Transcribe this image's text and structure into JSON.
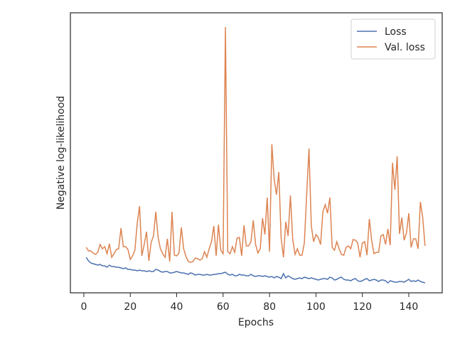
{
  "chart_data": {
    "type": "line",
    "xlabel": "Epochs",
    "ylabel": "Negative log-likelihood",
    "x": [
      1,
      2,
      3,
      4,
      5,
      6,
      7,
      8,
      9,
      10,
      11,
      12,
      13,
      14,
      15,
      16,
      17,
      18,
      19,
      20,
      21,
      22,
      23,
      24,
      25,
      26,
      27,
      28,
      29,
      30,
      31,
      32,
      33,
      34,
      35,
      36,
      37,
      38,
      39,
      40,
      41,
      42,
      43,
      44,
      45,
      46,
      47,
      48,
      49,
      50,
      51,
      52,
      53,
      54,
      55,
      56,
      57,
      58,
      59,
      60,
      61,
      62,
      63,
      64,
      65,
      66,
      67,
      68,
      69,
      70,
      71,
      72,
      73,
      74,
      75,
      76,
      77,
      78,
      79,
      80,
      81,
      82,
      83,
      84,
      85,
      86,
      87,
      88,
      89,
      90,
      91,
      92,
      93,
      94,
      95,
      96,
      97,
      98,
      99,
      100,
      101,
      102,
      103,
      104,
      105,
      106,
      107,
      108,
      109,
      110,
      111,
      112,
      113,
      114,
      115,
      116,
      117,
      118,
      119,
      120,
      121,
      122,
      123,
      124,
      125,
      126,
      127,
      128,
      129,
      130,
      131,
      132,
      133,
      134,
      135,
      136,
      137,
      138,
      139,
      140,
      141,
      142,
      143,
      144,
      145,
      146,
      147
    ],
    "series": [
      {
        "name": "Loss",
        "color": "#4c72b0",
        "values": [
          0.5,
          0.45,
          0.42,
          0.41,
          0.4,
          0.39,
          0.4,
          0.38,
          0.38,
          0.36,
          0.39,
          0.37,
          0.37,
          0.36,
          0.36,
          0.35,
          0.34,
          0.35,
          0.33,
          0.33,
          0.32,
          0.32,
          0.31,
          0.32,
          0.31,
          0.31,
          0.3,
          0.31,
          0.3,
          0.3,
          0.33,
          0.32,
          0.3,
          0.29,
          0.3,
          0.3,
          0.28,
          0.28,
          0.29,
          0.3,
          0.29,
          0.28,
          0.28,
          0.27,
          0.26,
          0.28,
          0.27,
          0.25,
          0.26,
          0.26,
          0.25,
          0.25,
          0.26,
          0.25,
          0.25,
          0.26,
          0.26,
          0.27,
          0.27,
          0.28,
          0.29,
          0.26,
          0.25,
          0.26,
          0.24,
          0.24,
          0.26,
          0.25,
          0.25,
          0.24,
          0.24,
          0.26,
          0.24,
          0.23,
          0.24,
          0.24,
          0.23,
          0.24,
          0.23,
          0.22,
          0.23,
          0.21,
          0.23,
          0.22,
          0.2,
          0.27,
          0.21,
          0.24,
          0.22,
          0.2,
          0.19,
          0.2,
          0.21,
          0.2,
          0.22,
          0.21,
          0.2,
          0.21,
          0.2,
          0.19,
          0.18,
          0.19,
          0.2,
          0.2,
          0.19,
          0.22,
          0.21,
          0.18,
          0.19,
          0.21,
          0.22,
          0.19,
          0.18,
          0.18,
          0.17,
          0.19,
          0.2,
          0.17,
          0.16,
          0.17,
          0.19,
          0.2,
          0.17,
          0.18,
          0.19,
          0.18,
          0.16,
          0.18,
          0.18,
          0.17,
          0.14,
          0.17,
          0.16,
          0.15,
          0.15,
          0.16,
          0.16,
          0.15,
          0.17,
          0.19,
          0.16,
          0.17,
          0.16,
          0.18,
          0.16,
          0.15,
          0.14
        ]
      },
      {
        "name": "Val. loss",
        "color": "#dd8452",
        "values": [
          0.64,
          0.59,
          0.59,
          0.56,
          0.54,
          0.57,
          0.68,
          0.62,
          0.65,
          0.55,
          0.69,
          0.5,
          0.55,
          0.61,
          0.62,
          0.91,
          0.65,
          0.65,
          0.61,
          0.47,
          0.52,
          0.6,
          0.98,
          1.22,
          0.52,
          0.68,
          0.86,
          0.45,
          0.71,
          0.8,
          1.14,
          0.78,
          0.62,
          0.55,
          0.5,
          0.76,
          0.44,
          1.14,
          0.53,
          0.52,
          0.56,
          0.92,
          0.62,
          0.51,
          0.44,
          0.43,
          0.44,
          0.49,
          0.48,
          0.46,
          0.48,
          0.58,
          0.5,
          0.62,
          0.72,
          0.94,
          0.52,
          0.96,
          0.6,
          0.55,
          3.74,
          0.58,
          0.55,
          0.65,
          0.57,
          0.77,
          0.78,
          0.52,
          0.95,
          0.66,
          0.66,
          0.72,
          1.02,
          0.68,
          0.56,
          0.62,
          1.05,
          0.82,
          1.34,
          0.58,
          2.09,
          1.6,
          1.38,
          1.7,
          0.77,
          0.5,
          1.0,
          0.8,
          1.37,
          0.75,
          0.54,
          0.62,
          0.53,
          0.53,
          0.7,
          1.38,
          2.03,
          0.94,
          0.72,
          0.82,
          0.78,
          0.68,
          1.14,
          1.24,
          1.12,
          1.34,
          0.64,
          0.6,
          0.72,
          0.62,
          0.54,
          0.53,
          0.64,
          0.66,
          0.62,
          0.75,
          0.74,
          0.7,
          0.5,
          0.7,
          0.72,
          0.53,
          1.04,
          0.74,
          0.55,
          0.57,
          0.57,
          0.8,
          0.82,
          0.68,
          0.9,
          0.67,
          1.83,
          1.45,
          1.92,
          0.83,
          1.06,
          0.74,
          0.84,
          1.12,
          0.64,
          0.76,
          0.76,
          0.62,
          1.28,
          1.06,
          0.66
        ]
      }
    ],
    "xlim": [
      -5.8,
      154.4
    ],
    "xticks": [
      0,
      20,
      40,
      60,
      80,
      100,
      120,
      140
    ],
    "ylim": [
      0,
      3.94
    ],
    "legend": "upper right"
  }
}
